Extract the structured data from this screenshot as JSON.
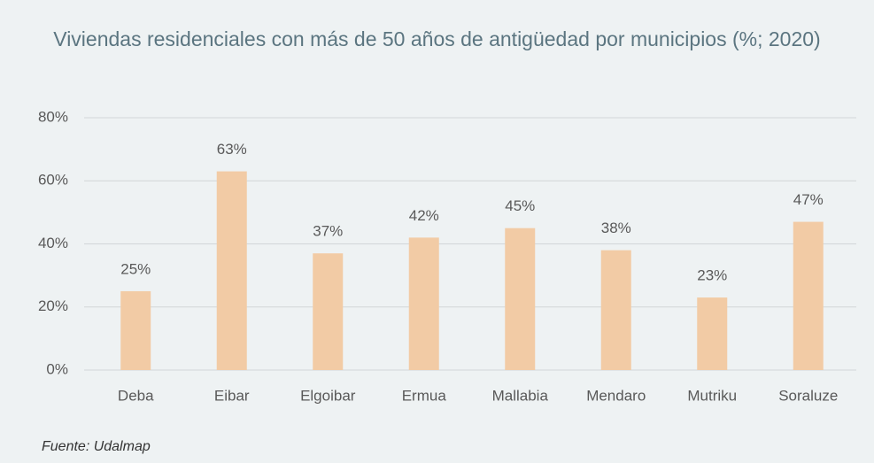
{
  "chart_data": {
    "type": "bar",
    "title": "Viviendas residenciales con más de 50 años de antigüedad por municipios (%; 2020)",
    "source": "Fuente: Udalmap",
    "categories": [
      "Deba",
      "Eibar",
      "Elgoibar",
      "Ermua",
      "Mallabia",
      "Mendaro",
      "Mutriku",
      "Soraluze"
    ],
    "values": [
      25,
      63,
      37,
      42,
      45,
      38,
      23,
      47
    ],
    "value_labels": [
      "25%",
      "63%",
      "37%",
      "42%",
      "45%",
      "38%",
      "23%",
      "47%"
    ],
    "color": "#f2cba5",
    "ylim": [
      0,
      80
    ],
    "yticks": [
      {
        "value": 0,
        "label": "0%"
      },
      {
        "value": 20,
        "label": "20%"
      },
      {
        "value": 40,
        "label": "40%"
      },
      {
        "value": 60,
        "label": "60%"
      },
      {
        "value": 80,
        "label": "80%"
      }
    ],
    "grid": true
  }
}
